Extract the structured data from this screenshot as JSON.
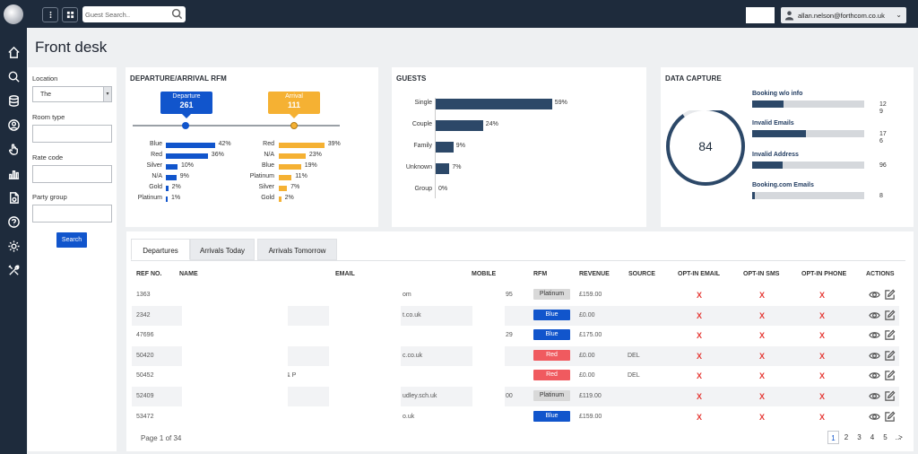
{
  "search": {
    "placeholder": "Guest Search.."
  },
  "user": {
    "email": "allan.nelson@forthcom.co.uk"
  },
  "page_title": "Front desk",
  "filters": {
    "location_label": "Location",
    "location_value": "The",
    "room_type_label": "Room type",
    "rate_code_label": "Rate code",
    "party_group_label": "Party group",
    "search_button": "Search"
  },
  "rfm": {
    "title": "DEPARTURE/ARRIVAL RFM",
    "departure": {
      "label": "Departure",
      "count": "261",
      "color": "#1155cc"
    },
    "arrival": {
      "label": "Arrival",
      "count": "111",
      "color": "#f5b133"
    },
    "departure_rows": [
      {
        "label": "Blue",
        "pct": "42%",
        "value": 42
      },
      {
        "label": "Red",
        "pct": "36%",
        "value": 36
      },
      {
        "label": "Silver",
        "pct": "10%",
        "value": 10
      },
      {
        "label": "N/A",
        "pct": "9%",
        "value": 9
      },
      {
        "label": "Gold",
        "pct": "2%",
        "value": 2
      },
      {
        "label": "Platinum",
        "pct": "1%",
        "value": 1
      }
    ],
    "arrival_rows": [
      {
        "label": "Red",
        "pct": "39%",
        "value": 39
      },
      {
        "label": "N/A",
        "pct": "23%",
        "value": 23
      },
      {
        "label": "Blue",
        "pct": "19%",
        "value": 19
      },
      {
        "label": "Platinum",
        "pct": "11%",
        "value": 11
      },
      {
        "label": "Silver",
        "pct": "7%",
        "value": 7
      },
      {
        "label": "Gold",
        "pct": "2%",
        "value": 2
      }
    ]
  },
  "guests": {
    "title": "GUESTS",
    "rows": [
      {
        "label": "Single",
        "pct": "59%",
        "value": 59
      },
      {
        "label": "Couple",
        "pct": "24%",
        "value": 24
      },
      {
        "label": "Family",
        "pct": "9%",
        "value": 9
      },
      {
        "label": "Unknown",
        "pct": "7%",
        "value": 7
      },
      {
        "label": "Group",
        "pct": "0%",
        "value": 0
      }
    ]
  },
  "data_capture": {
    "title": "DATA CAPTURE",
    "total": "84",
    "items": [
      {
        "label": "Booking w/o info",
        "values": [
          "12",
          "9"
        ],
        "fill": 0.28
      },
      {
        "label": "Invalid Emails",
        "values": [
          "17",
          "6"
        ],
        "fill": 0.48
      },
      {
        "label": "Invalid Address",
        "values": [
          "96"
        ],
        "fill": 0.27
      },
      {
        "label": "Booking.com Emails",
        "values": [
          "8"
        ],
        "fill": 0.02
      }
    ]
  },
  "tabs": [
    "Departures",
    "Arrivals Today",
    "Arrivals Tomorrow"
  ],
  "table": {
    "headers": [
      "REF NO.",
      "NAME",
      "EMAIL",
      "MOBILE",
      "RFM",
      "REVENUE",
      "SOURCE",
      "OPT-IN EMAIL",
      "OPT-IN SMS",
      "OPT-IN PHONE",
      "ACTIONS"
    ],
    "rows": [
      {
        "ref": "1363",
        "name": "",
        "email": "om",
        "mobile": "95",
        "rfm": "Platinum",
        "revenue": "£159.00",
        "source": ""
      },
      {
        "ref": "2342",
        "name": "",
        "email": "t.co.uk",
        "mobile": "",
        "rfm": "Blue",
        "revenue": "£0.00",
        "source": ""
      },
      {
        "ref": "47696",
        "name": "",
        "email": "",
        "mobile": "29",
        "rfm": "Blue",
        "revenue": "£175.00",
        "source": ""
      },
      {
        "ref": "50420",
        "name": "",
        "email": "c.co.uk",
        "mobile": "",
        "rfm": "Red",
        "revenue": "£0.00",
        "source": "DEL"
      },
      {
        "ref": "50452",
        "name": "& P",
        "email": "",
        "mobile": "",
        "rfm": "Red",
        "revenue": "£0.00",
        "source": "DEL"
      },
      {
        "ref": "52409",
        "name": "",
        "email": "udley.sch.uk",
        "mobile": "00",
        "rfm": "Platinum",
        "revenue": "£119.00",
        "source": ""
      },
      {
        "ref": "53472",
        "name": "",
        "email": "o.uk",
        "mobile": "",
        "rfm": "Blue",
        "revenue": "£159.00",
        "source": ""
      }
    ],
    "optin_mark": "X"
  },
  "pagination": {
    "text": "Page 1 of 34",
    "pages": [
      "1",
      "2",
      "3",
      "4",
      "5",
      "..."
    ],
    "next": ">"
  },
  "rfm_colors": {
    "Platinum": "#d9d9d9",
    "Blue": "#1155cc",
    "Red": "#f05a5f"
  }
}
